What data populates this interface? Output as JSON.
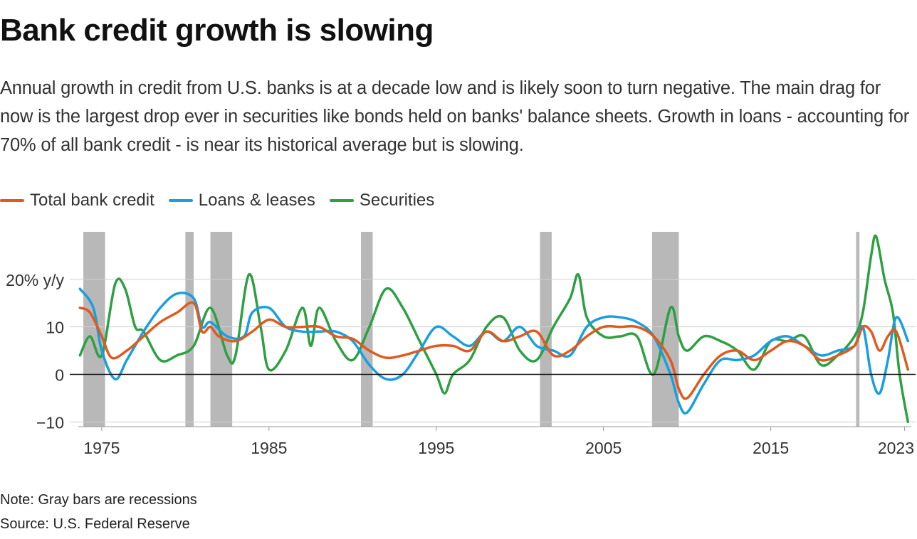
{
  "title": "Bank credit growth is slowing",
  "subtitle": "Annual growth in credit from U.S. banks is at a decade low and is likely soon to turn negative. The main drag for now is the largest drop ever in securities like bonds held on banks' balance sheets. Growth in loans - accounting for 70% of all bank credit - is near its historical average but is slowing.",
  "note": "Note: Gray bars are recessions",
  "source": "Source: U.S. Federal Reserve",
  "chart_data": {
    "type": "line",
    "ylabel": "",
    "xlim": [
      1973.6,
      2023.4
    ],
    "ylim": [
      -11,
      30
    ],
    "y_ticks": [
      {
        "value": 20,
        "label": "20% y/y"
      },
      {
        "value": 10,
        "label": "10"
      },
      {
        "value": 0,
        "label": "0"
      },
      {
        "value": -10,
        "label": "−10"
      }
    ],
    "x_ticks": [
      {
        "value": 1975,
        "label": "1975"
      },
      {
        "value": 1985,
        "label": "1985"
      },
      {
        "value": 1995,
        "label": "1995"
      },
      {
        "value": 2005,
        "label": "2005"
      },
      {
        "value": 2015,
        "label": "2015"
      },
      {
        "value": 2023,
        "label": "2023"
      }
    ],
    "legend_position": "top-left",
    "recessions": [
      [
        1973.9,
        1975.2
      ],
      [
        1980.0,
        1980.5
      ],
      [
        1981.5,
        1982.8
      ],
      [
        1990.5,
        1991.2
      ],
      [
        2001.2,
        2001.9
      ],
      [
        2007.9,
        2009.5
      ],
      [
        2020.1,
        2020.3
      ]
    ],
    "series": [
      {
        "name": "Total bank credit",
        "color": "#e05a1e",
        "points": [
          [
            1973.7,
            14
          ],
          [
            1974.3,
            13
          ],
          [
            1975.0,
            8
          ],
          [
            1975.6,
            3.5
          ],
          [
            1976.5,
            5
          ],
          [
            1977.5,
            8
          ],
          [
            1978.5,
            11
          ],
          [
            1979.5,
            13
          ],
          [
            1980.5,
            15
          ],
          [
            1981.0,
            9
          ],
          [
            1981.5,
            10
          ],
          [
            1982.0,
            8
          ],
          [
            1983.0,
            7
          ],
          [
            1984.0,
            9
          ],
          [
            1985.0,
            11.5
          ],
          [
            1986.0,
            10
          ],
          [
            1987.0,
            10
          ],
          [
            1988.0,
            10
          ],
          [
            1989.0,
            8
          ],
          [
            1990.0,
            7.5
          ],
          [
            1991.0,
            5
          ],
          [
            1992.0,
            3.5
          ],
          [
            1993.0,
            4
          ],
          [
            1994.0,
            5
          ],
          [
            1995.0,
            6
          ],
          [
            1996.0,
            6
          ],
          [
            1997.0,
            5
          ],
          [
            1998.0,
            9
          ],
          [
            1999.0,
            7
          ],
          [
            2000.0,
            8
          ],
          [
            2001.0,
            9
          ],
          [
            2002.0,
            4
          ],
          [
            2003.0,
            5
          ],
          [
            2004.0,
            8
          ],
          [
            2005.0,
            10
          ],
          [
            2006.0,
            10
          ],
          [
            2007.0,
            10
          ],
          [
            2008.0,
            8
          ],
          [
            2009.0,
            3
          ],
          [
            2009.5,
            -3
          ],
          [
            2010.0,
            -5
          ],
          [
            2011.0,
            0
          ],
          [
            2012.0,
            4
          ],
          [
            2013.0,
            5
          ],
          [
            2014.0,
            3
          ],
          [
            2015.0,
            5
          ],
          [
            2016.0,
            7
          ],
          [
            2017.0,
            6
          ],
          [
            2018.0,
            3
          ],
          [
            2019.0,
            4
          ],
          [
            2020.0,
            6
          ],
          [
            2020.5,
            10
          ],
          [
            2021.0,
            9
          ],
          [
            2021.5,
            5
          ],
          [
            2022.0,
            8
          ],
          [
            2022.5,
            9
          ],
          [
            2023.2,
            1
          ]
        ]
      },
      {
        "name": "Loans & leases",
        "color": "#1a9ee0",
        "points": [
          [
            1973.7,
            18
          ],
          [
            1974.5,
            14
          ],
          [
            1975.0,
            5
          ],
          [
            1975.8,
            -1
          ],
          [
            1976.5,
            3
          ],
          [
            1977.5,
            9
          ],
          [
            1978.5,
            14
          ],
          [
            1979.5,
            17
          ],
          [
            1980.5,
            16
          ],
          [
            1981.0,
            10
          ],
          [
            1981.5,
            11
          ],
          [
            1982.5,
            8
          ],
          [
            1983.5,
            8
          ],
          [
            1984.0,
            13
          ],
          [
            1985.0,
            14
          ],
          [
            1986.0,
            10
          ],
          [
            1987.0,
            9
          ],
          [
            1988.0,
            9
          ],
          [
            1989.0,
            9
          ],
          [
            1990.0,
            7
          ],
          [
            1991.0,
            2
          ],
          [
            1992.0,
            -1
          ],
          [
            1993.0,
            0
          ],
          [
            1994.0,
            5
          ],
          [
            1995.0,
            10
          ],
          [
            1996.0,
            8
          ],
          [
            1997.0,
            6
          ],
          [
            1998.0,
            9
          ],
          [
            1999.0,
            7
          ],
          [
            2000.0,
            10
          ],
          [
            2001.0,
            6
          ],
          [
            2002.0,
            5
          ],
          [
            2003.0,
            4
          ],
          [
            2004.0,
            10
          ],
          [
            2005.0,
            12
          ],
          [
            2006.0,
            12
          ],
          [
            2007.0,
            11
          ],
          [
            2008.0,
            8
          ],
          [
            2009.0,
            0
          ],
          [
            2009.5,
            -6
          ],
          [
            2010.0,
            -8
          ],
          [
            2011.0,
            -2
          ],
          [
            2012.0,
            3
          ],
          [
            2013.0,
            3
          ],
          [
            2014.0,
            4
          ],
          [
            2015.0,
            7
          ],
          [
            2016.0,
            8
          ],
          [
            2017.0,
            6
          ],
          [
            2018.0,
            4
          ],
          [
            2019.0,
            5
          ],
          [
            2020.0,
            6
          ],
          [
            2020.5,
            10
          ],
          [
            2021.0,
            0
          ],
          [
            2021.5,
            -4
          ],
          [
            2022.0,
            3
          ],
          [
            2022.5,
            12
          ],
          [
            2023.2,
            7
          ]
        ]
      },
      {
        "name": "Securities",
        "color": "#2ea043",
        "points": [
          [
            1973.7,
            4
          ],
          [
            1974.3,
            8
          ],
          [
            1975.0,
            4
          ],
          [
            1975.8,
            19
          ],
          [
            1976.4,
            18
          ],
          [
            1977.0,
            10
          ],
          [
            1977.5,
            9
          ],
          [
            1978.5,
            3
          ],
          [
            1979.5,
            4
          ],
          [
            1980.5,
            6
          ],
          [
            1981.5,
            14
          ],
          [
            1982.5,
            4
          ],
          [
            1983.0,
            4
          ],
          [
            1983.8,
            21
          ],
          [
            1984.5,
            10
          ],
          [
            1985.0,
            1
          ],
          [
            1986.0,
            5
          ],
          [
            1987.0,
            14
          ],
          [
            1987.5,
            6
          ],
          [
            1988.0,
            14
          ],
          [
            1989.0,
            7
          ],
          [
            1990.0,
            3
          ],
          [
            1991.0,
            10
          ],
          [
            1992.0,
            18
          ],
          [
            1993.0,
            14
          ],
          [
            1994.0,
            7
          ],
          [
            1995.0,
            0
          ],
          [
            1995.5,
            -4
          ],
          [
            1996.0,
            0
          ],
          [
            1997.0,
            3
          ],
          [
            1998.0,
            10
          ],
          [
            1999.0,
            12
          ],
          [
            2000.0,
            5
          ],
          [
            2001.0,
            3
          ],
          [
            2002.0,
            10
          ],
          [
            2003.0,
            16
          ],
          [
            2003.5,
            21
          ],
          [
            2004.0,
            12
          ],
          [
            2005.0,
            8
          ],
          [
            2006.0,
            8
          ],
          [
            2007.0,
            8
          ],
          [
            2008.0,
            0
          ],
          [
            2009.0,
            14
          ],
          [
            2009.5,
            8
          ],
          [
            2010.0,
            5
          ],
          [
            2011.0,
            8
          ],
          [
            2012.0,
            7
          ],
          [
            2013.0,
            5
          ],
          [
            2014.0,
            1
          ],
          [
            2015.0,
            7
          ],
          [
            2016.0,
            7
          ],
          [
            2017.0,
            8
          ],
          [
            2018.0,
            2
          ],
          [
            2019.0,
            4
          ],
          [
            2020.0,
            8
          ],
          [
            2020.5,
            13
          ],
          [
            2021.0,
            25
          ],
          [
            2021.3,
            29
          ],
          [
            2021.8,
            20
          ],
          [
            2022.3,
            13
          ],
          [
            2022.7,
            0
          ],
          [
            2023.2,
            -10
          ]
        ]
      }
    ]
  }
}
